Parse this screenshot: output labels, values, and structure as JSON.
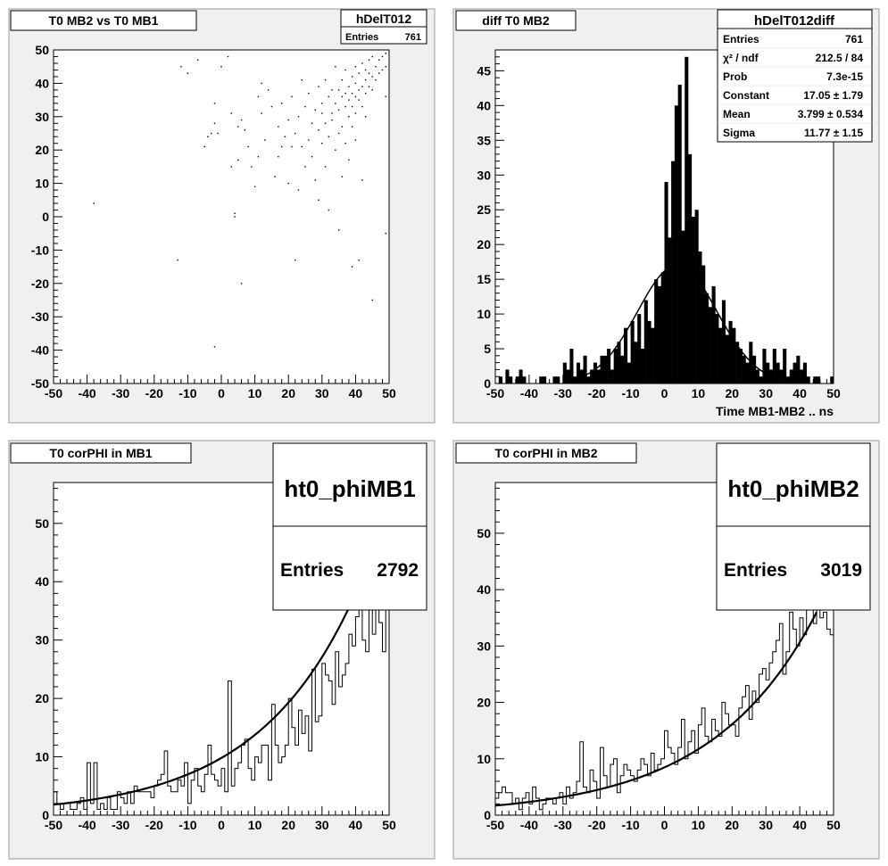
{
  "pads": [
    {
      "id": "pad1",
      "title": "T0 MB2 vs T0 MB1",
      "stats": {
        "name": "hDelT012",
        "rows": [
          {
            "label": "Entries",
            "value": "761"
          }
        ]
      },
      "xlabel": "",
      "ylabel": "",
      "xticks": [
        "-50",
        "-40",
        "-30",
        "-20",
        "-10",
        "0",
        "10",
        "20",
        "30",
        "40",
        "50"
      ],
      "yticks": [
        "-50",
        "-40",
        "-30",
        "-20",
        "-10",
        "0",
        "10",
        "20",
        "30",
        "40",
        "50"
      ]
    },
    {
      "id": "pad2",
      "title": "diff T0 MB2",
      "stats": {
        "name": "hDelT012diff",
        "rows": [
          {
            "label": "Entries",
            "value": "761"
          },
          {
            "label": "χ² / ndf",
            "value": "212.5 / 84"
          },
          {
            "label": "Prob",
            "value": "7.3e-15"
          },
          {
            "label": "Constant",
            "value": "17.05 ± 1.79"
          },
          {
            "label": "Mean",
            "value": "3.799 ± 0.534"
          },
          {
            "label": "Sigma",
            "value": "11.77 ± 1.15"
          }
        ]
      },
      "xlabel": "Time MB1-MB2  ..  ns",
      "ylabel": "",
      "xticks": [
        "-50",
        "-40",
        "-30",
        "-20",
        "-10",
        "0",
        "10",
        "20",
        "30",
        "40",
        "50"
      ],
      "yticks": [
        "0",
        "5",
        "10",
        "15",
        "20",
        "25",
        "30",
        "35",
        "40",
        "45"
      ]
    },
    {
      "id": "pad3",
      "title": "T0 corPHI in MB1",
      "stats": {
        "name": "ht0_phiMB1",
        "rows": [
          {
            "label": "Entries",
            "value": "2792"
          }
        ]
      },
      "xlabel": "",
      "ylabel": "",
      "xticks": [
        "-50",
        "-40",
        "-30",
        "-20",
        "-10",
        "0",
        "10",
        "20",
        "30",
        "40",
        "50"
      ],
      "yticks": [
        "0",
        "10",
        "20",
        "30",
        "40",
        "50"
      ]
    },
    {
      "id": "pad4",
      "title": "T0 corPHI in MB2",
      "stats": {
        "name": "ht0_phiMB2",
        "rows": [
          {
            "label": "Entries",
            "value": "3019"
          }
        ]
      },
      "xlabel": "",
      "ylabel": "",
      "xticks": [
        "-50",
        "-40",
        "-30",
        "-20",
        "-10",
        "0",
        "10",
        "20",
        "30",
        "40",
        "50"
      ],
      "yticks": [
        "0",
        "10",
        "20",
        "30",
        "40",
        "50"
      ]
    }
  ],
  "chart_data": [
    {
      "type": "scatter",
      "title": "T0 MB2 vs T0 MB1",
      "xlim": [
        -50,
        50
      ],
      "ylim": [
        -50,
        50
      ],
      "grid": false,
      "points": [
        [
          -38,
          4
        ],
        [
          -13,
          -13
        ],
        [
          -12,
          45
        ],
        [
          -10,
          43
        ],
        [
          -7,
          47
        ],
        [
          -5,
          21
        ],
        [
          -4,
          24
        ],
        [
          -3,
          25
        ],
        [
          -2,
          28
        ],
        [
          -2,
          34
        ],
        [
          -1,
          25
        ],
        [
          0,
          45
        ],
        [
          2,
          48
        ],
        [
          3,
          31
        ],
        [
          3,
          15
        ],
        [
          4,
          1
        ],
        [
          4,
          0
        ],
        [
          5,
          17
        ],
        [
          5,
          27
        ],
        [
          6,
          29
        ],
        [
          6,
          -20
        ],
        [
          7,
          26
        ],
        [
          8,
          21
        ],
        [
          9,
          15
        ],
        [
          10,
          9
        ],
        [
          11,
          18
        ],
        [
          11,
          36
        ],
        [
          12,
          40
        ],
        [
          12,
          31
        ],
        [
          13,
          23
        ],
        [
          14,
          38
        ],
        [
          15,
          33
        ],
        [
          16,
          12
        ],
        [
          17,
          18
        ],
        [
          17,
          27
        ],
        [
          18,
          34
        ],
        [
          18,
          21
        ],
        [
          19,
          24
        ],
        [
          20,
          10
        ],
        [
          20,
          29
        ],
        [
          21,
          21
        ],
        [
          21,
          36
        ],
        [
          22,
          25
        ],
        [
          22,
          -13
        ],
        [
          23,
          8
        ],
        [
          23,
          30
        ],
        [
          24,
          21
        ],
        [
          24,
          41
        ],
        [
          25,
          33
        ],
        [
          25,
          15
        ],
        [
          26,
          23
        ],
        [
          26,
          37
        ],
        [
          27,
          28
        ],
        [
          27,
          18
        ],
        [
          28,
          32
        ],
        [
          28,
          11
        ],
        [
          29,
          26
        ],
        [
          29,
          39
        ],
        [
          29,
          5
        ],
        [
          30,
          22
        ],
        [
          30,
          31
        ],
        [
          30,
          34
        ],
        [
          31,
          28
        ],
        [
          31,
          41
        ],
        [
          31,
          15
        ],
        [
          32,
          36
        ],
        [
          32,
          24
        ],
        [
          32,
          2
        ],
        [
          33,
          31
        ],
        [
          33,
          38
        ],
        [
          33,
          29
        ],
        [
          34,
          20
        ],
        [
          34,
          34
        ],
        [
          34,
          45
        ],
        [
          35,
          25
        ],
        [
          35,
          32
        ],
        [
          35,
          38
        ],
        [
          35,
          -4
        ],
        [
          36,
          36
        ],
        [
          36,
          27
        ],
        [
          36,
          41
        ],
        [
          36,
          12
        ],
        [
          37,
          33
        ],
        [
          37,
          37
        ],
        [
          37,
          44
        ],
        [
          37,
          22
        ],
        [
          38,
          35
        ],
        [
          38,
          39
        ],
        [
          38,
          30
        ],
        [
          38,
          17
        ],
        [
          39,
          37
        ],
        [
          39,
          42
        ],
        [
          39,
          33
        ],
        [
          39,
          27
        ],
        [
          39,
          -15
        ],
        [
          40,
          36
        ],
        [
          40,
          40
        ],
        [
          40,
          45
        ],
        [
          40,
          31
        ],
        [
          40,
          23
        ],
        [
          41,
          38
        ],
        [
          41,
          43
        ],
        [
          41,
          35
        ],
        [
          41,
          -13
        ],
        [
          42,
          39
        ],
        [
          42,
          46
        ],
        [
          42,
          33
        ],
        [
          42,
          11
        ],
        [
          43,
          41
        ],
        [
          43,
          37
        ],
        [
          43,
          44
        ],
        [
          43,
          30
        ],
        [
          44,
          43
        ],
        [
          44,
          39
        ],
        [
          44,
          47
        ],
        [
          45,
          42
        ],
        [
          45,
          48
        ],
        [
          45,
          38
        ],
        [
          45,
          -25
        ],
        [
          46,
          45
        ],
        [
          46,
          41
        ],
        [
          47,
          47
        ],
        [
          47,
          43
        ],
        [
          48,
          48
        ],
        [
          48,
          44
        ],
        [
          49,
          49
        ],
        [
          49,
          45
        ],
        [
          49,
          36
        ],
        [
          49,
          -5
        ],
        [
          -2,
          -39
        ]
      ]
    },
    {
      "type": "bar",
      "title": "diff T0 MB2",
      "xlabel": "Time MB1-MB2  ..  ns",
      "xlim": [
        -50,
        50
      ],
      "ylim": [
        0,
        48
      ],
      "bin_width": 1,
      "bin_start": -50,
      "values": [
        0,
        1,
        0,
        2,
        1,
        0,
        1,
        2,
        1,
        0,
        0,
        0,
        0,
        1,
        1,
        0,
        0,
        1,
        1,
        0,
        3,
        2,
        5,
        1,
        3,
        2,
        4,
        1,
        2,
        3,
        2,
        4,
        4,
        5,
        2,
        5,
        6,
        4,
        8,
        3,
        9,
        6,
        10,
        5,
        12,
        9,
        8,
        15,
        14,
        16,
        29,
        21,
        32,
        40,
        43,
        22,
        47,
        33,
        24,
        25,
        19,
        17,
        13,
        11,
        14,
        10,
        8,
        12,
        7,
        9,
        8,
        6,
        5,
        4,
        3,
        6,
        4,
        2,
        1,
        5,
        3,
        2,
        5,
        3,
        2,
        5,
        1,
        2,
        3,
        4,
        2,
        3,
        1,
        0,
        1,
        1,
        0,
        0,
        0,
        1
      ],
      "fit": {
        "function": "gaus",
        "constant": 17.05,
        "mean": 3.799,
        "sigma": 11.77
      }
    },
    {
      "type": "line",
      "title": "T0 corPHI in MB1",
      "xlim": [
        -50,
        50
      ],
      "ylim": [
        0,
        57
      ],
      "bin_width": 1,
      "bin_start": -50,
      "values": [
        4,
        2,
        1,
        2,
        2,
        1,
        1,
        2,
        3,
        1,
        9,
        2,
        9,
        1,
        2,
        1,
        3,
        1,
        1,
        4,
        3,
        2,
        4,
        2,
        5,
        4,
        4,
        4,
        4,
        3,
        5,
        6,
        7,
        11,
        5,
        4,
        4,
        6,
        5,
        9,
        2,
        6,
        8,
        5,
        4,
        7,
        12,
        7,
        6,
        5,
        8,
        4,
        23,
        5,
        8,
        9,
        12,
        13,
        8,
        6,
        10,
        9,
        12,
        12,
        6,
        19,
        12,
        9,
        10,
        12,
        20,
        15,
        12,
        18,
        14,
        17,
        11,
        25,
        16,
        17,
        26,
        24,
        23,
        19,
        28,
        22,
        24,
        26,
        31,
        29,
        34,
        38,
        30,
        28,
        36,
        31,
        40,
        33,
        28,
        42
      ],
      "fit": {
        "function": "expo",
        "x": [
          -50,
          38
        ],
        "y": [
          1.8,
          35.5
        ]
      }
    },
    {
      "type": "line",
      "title": "T0 corPHI in MB2",
      "xlim": [
        -50,
        50
      ],
      "ylim": [
        0,
        59
      ],
      "bin_width": 1,
      "bin_start": -50,
      "values": [
        3,
        4,
        5,
        4,
        4,
        2,
        3,
        1,
        3,
        4,
        2,
        5,
        3,
        1,
        2,
        3,
        3,
        2,
        3,
        4,
        2,
        5,
        3,
        4,
        6,
        13,
        5,
        4,
        8,
        6,
        3,
        12,
        7,
        5,
        9,
        10,
        4,
        7,
        9,
        8,
        7,
        6,
        8,
        10,
        9,
        7,
        11,
        8,
        9,
        10,
        15,
        12,
        11,
        9,
        12,
        17,
        10,
        13,
        15,
        11,
        16,
        19,
        14,
        13,
        17,
        15,
        14,
        20,
        18,
        16,
        16,
        14,
        19,
        21,
        23,
        17,
        22,
        20,
        25,
        26,
        24,
        27,
        29,
        31,
        34,
        25,
        29,
        36,
        33,
        30,
        35,
        32,
        37,
        38,
        34,
        38,
        35,
        36,
        33,
        32
      ],
      "fit": {
        "function": "expo",
        "x": [
          -50,
          45
        ],
        "y": [
          1.7,
          36
        ]
      }
    }
  ]
}
